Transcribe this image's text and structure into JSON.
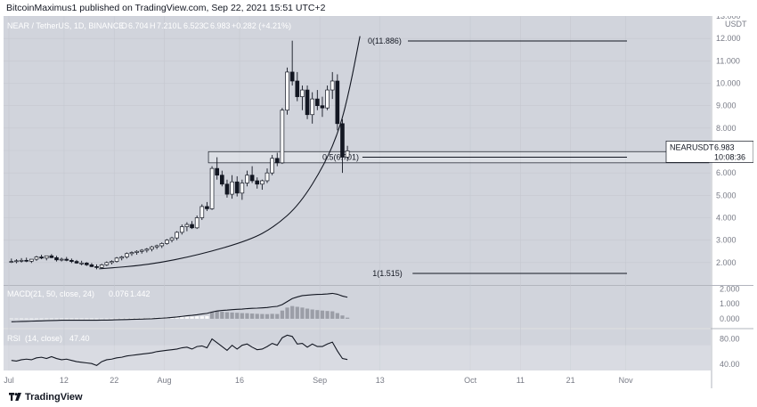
{
  "header": {
    "publisher_line": "BitcoinMaximus1 published on TradingView.com, Sep 22, 2021 15:51 UTC+2"
  },
  "footer": {
    "brand": "TradingView"
  },
  "colors": {
    "pane_bg": "#d1d4dc",
    "up": "#ffffff",
    "down": "#131722",
    "line": "#131722",
    "grid": "#c5c8d0"
  },
  "chart_data": [
    {
      "type": "candlestick",
      "legend": {
        "symbol": "NEAR / TetherUS, 1D, BINANCE",
        "open": "6.704",
        "high": "7.210",
        "low": "6.523",
        "close": "6.983",
        "change": "+0.282 (+4.21%)"
      },
      "yaxis": {
        "unit": "USDT",
        "ticks": [
          "2.000",
          "3.000",
          "4.000",
          "5.000",
          "6.000",
          "7.000",
          "8.000",
          "9.000",
          "10.000",
          "11.000",
          "12.000",
          "13.000"
        ],
        "range": [
          1.0,
          13.0
        ]
      },
      "xaxis": {
        "ticks": [
          "Jul",
          "12",
          "22",
          "Aug",
          "16",
          "Sep",
          "13",
          "Oct",
          "11",
          "21",
          "Nov"
        ]
      },
      "price_label": {
        "symbol": "NEARUSDT",
        "value": "6.983",
        "countdown": "10:08:36"
      },
      "fib_levels": [
        {
          "label": "0(11.886)",
          "value": 11.886
        },
        {
          "label": "0.5(6.701)",
          "value": 6.701
        },
        {
          "label": "1(1.515)",
          "value": 1.515
        }
      ],
      "support_zone": [
        6.45,
        6.95
      ],
      "candles": [
        [
          2.05,
          2.18,
          1.98,
          2.05
        ],
        [
          2.05,
          2.15,
          1.97,
          2.08
        ],
        [
          2.08,
          2.2,
          2.0,
          2.1
        ],
        [
          2.1,
          2.22,
          2.02,
          2.06
        ],
        [
          2.06,
          2.15,
          1.98,
          2.15
        ],
        [
          2.15,
          2.3,
          2.08,
          2.25
        ],
        [
          2.25,
          2.35,
          2.15,
          2.2
        ],
        [
          2.2,
          2.28,
          2.1,
          2.3
        ],
        [
          2.3,
          2.38,
          2.2,
          2.22
        ],
        [
          2.22,
          2.3,
          2.05,
          2.12
        ],
        [
          2.12,
          2.22,
          2.05,
          2.15
        ],
        [
          2.15,
          2.25,
          2.06,
          2.1
        ],
        [
          2.1,
          2.18,
          1.98,
          2.05
        ],
        [
          2.05,
          2.12,
          1.95,
          1.98
        ],
        [
          1.98,
          2.08,
          1.88,
          1.98
        ],
        [
          1.98,
          2.02,
          1.85,
          1.9
        ],
        [
          1.9,
          1.98,
          1.8,
          1.82
        ],
        [
          1.82,
          1.92,
          1.7,
          1.78
        ],
        [
          1.78,
          1.95,
          1.72,
          1.9
        ],
        [
          1.9,
          2.05,
          1.85,
          2.0
        ],
        [
          2.0,
          2.1,
          1.92,
          2.05
        ],
        [
          2.05,
          2.25,
          2.0,
          2.2
        ],
        [
          2.2,
          2.3,
          2.1,
          2.25
        ],
        [
          2.25,
          2.45,
          2.18,
          2.4
        ],
        [
          2.4,
          2.5,
          2.3,
          2.45
        ],
        [
          2.45,
          2.55,
          2.35,
          2.5
        ],
        [
          2.5,
          2.6,
          2.4,
          2.55
        ],
        [
          2.55,
          2.65,
          2.45,
          2.6
        ],
        [
          2.6,
          2.75,
          2.5,
          2.7
        ],
        [
          2.7,
          2.8,
          2.6,
          2.75
        ],
        [
          2.75,
          2.9,
          2.65,
          2.85
        ],
        [
          2.85,
          3.05,
          2.8,
          3.0
        ],
        [
          3.0,
          3.15,
          2.9,
          3.1
        ],
        [
          3.1,
          3.4,
          3.0,
          3.35
        ],
        [
          3.35,
          3.7,
          3.25,
          3.6
        ],
        [
          3.6,
          3.8,
          3.4,
          3.7
        ],
        [
          3.7,
          3.85,
          3.5,
          3.55
        ],
        [
          3.55,
          4.1,
          3.5,
          4.0
        ],
        [
          4.0,
          4.6,
          3.9,
          4.5
        ],
        [
          4.5,
          4.7,
          4.3,
          4.4
        ],
        [
          4.4,
          6.3,
          4.35,
          6.2
        ],
        [
          6.2,
          6.7,
          5.7,
          5.9
        ],
        [
          5.9,
          6.1,
          5.4,
          5.5
        ],
        [
          5.5,
          5.7,
          4.9,
          5.05
        ],
        [
          5.05,
          5.9,
          4.85,
          5.6
        ],
        [
          5.6,
          5.85,
          4.95,
          5.1
        ],
        [
          5.1,
          5.7,
          4.8,
          5.55
        ],
        [
          5.55,
          6.1,
          5.4,
          5.9
        ],
        [
          5.9,
          6.3,
          5.55,
          5.65
        ],
        [
          5.65,
          5.8,
          5.3,
          5.5
        ],
        [
          5.5,
          5.7,
          5.25,
          5.65
        ],
        [
          5.65,
          6.2,
          5.55,
          6.0
        ],
        [
          6.0,
          6.8,
          5.9,
          6.65
        ],
        [
          6.65,
          6.9,
          6.3,
          6.45
        ],
        [
          6.45,
          8.9,
          6.4,
          8.8
        ],
        [
          8.8,
          10.7,
          8.6,
          10.5
        ],
        [
          10.5,
          11.9,
          9.9,
          10.1
        ],
        [
          10.1,
          10.5,
          9.2,
          9.4
        ],
        [
          9.4,
          9.9,
          8.8,
          9.7
        ],
        [
          9.7,
          9.9,
          8.4,
          8.6
        ],
        [
          8.6,
          9.6,
          8.2,
          9.3
        ],
        [
          9.3,
          9.7,
          8.8,
          9.0
        ],
        [
          9.0,
          9.4,
          8.5,
          8.9
        ],
        [
          8.9,
          9.9,
          8.8,
          9.7
        ],
        [
          9.7,
          10.5,
          9.3,
          10.1
        ],
        [
          10.1,
          10.4,
          7.9,
          8.2
        ],
        [
          8.2,
          8.4,
          6.0,
          6.7
        ],
        [
          6.704,
          7.21,
          6.523,
          6.983
        ]
      ],
      "curve": [
        [
          18,
          1.72
        ],
        [
          28,
          1.9
        ],
        [
          38,
          2.35
        ],
        [
          48,
          3.0
        ],
        [
          53,
          3.6
        ],
        [
          58,
          4.6
        ],
        [
          63,
          6.4
        ],
        [
          66,
          8.0
        ],
        [
          68,
          9.8
        ],
        [
          70,
          12.1
        ]
      ]
    },
    {
      "type": "line",
      "legend": {
        "name": "MACD",
        "params": "(21, 50, close, 24)",
        "value1": "0.076",
        "value2": "1.442"
      },
      "yaxis": {
        "ticks": [
          "0.000",
          "1.000",
          "2.000"
        ],
        "range": [
          -0.6,
          2.2
        ]
      },
      "macd": [
        -0.2,
        -0.19,
        -0.18,
        -0.17,
        -0.16,
        -0.15,
        -0.14,
        -0.13,
        -0.12,
        -0.11,
        -0.1,
        -0.1,
        -0.1,
        -0.1,
        -0.1,
        -0.1,
        -0.1,
        -0.1,
        -0.09,
        -0.09,
        -0.08,
        -0.07,
        -0.06,
        -0.05,
        -0.04,
        -0.03,
        -0.02,
        -0.01,
        0.0,
        0.02,
        0.04,
        0.06,
        0.09,
        0.12,
        0.16,
        0.2,
        0.23,
        0.27,
        0.32,
        0.36,
        0.45,
        0.52,
        0.56,
        0.58,
        0.61,
        0.63,
        0.65,
        0.68,
        0.7,
        0.71,
        0.73,
        0.75,
        0.8,
        0.83,
        0.95,
        1.15,
        1.35,
        1.46,
        1.55,
        1.58,
        1.61,
        1.63,
        1.64,
        1.66,
        1.7,
        1.64,
        1.52,
        1.442
      ],
      "histogram": [
        0.02,
        0.02,
        0.02,
        0.02,
        0.02,
        0.02,
        0.02,
        0.02,
        0.02,
        0.02,
        0.02,
        0.02,
        0.02,
        0.02,
        0.02,
        0.02,
        0.02,
        0.02,
        0.02,
        0.02,
        0.03,
        0.03,
        0.04,
        0.04,
        0.05,
        0.05,
        0.06,
        0.06,
        0.07,
        0.08,
        0.09,
        0.1,
        0.11,
        0.12,
        0.13,
        0.14,
        0.15,
        0.16,
        0.17,
        0.18,
        0.45,
        0.5,
        0.47,
        0.44,
        0.42,
        0.4,
        0.38,
        0.37,
        0.35,
        0.33,
        0.32,
        0.31,
        0.33,
        0.32,
        0.55,
        0.75,
        0.85,
        0.8,
        0.75,
        0.68,
        0.62,
        0.58,
        0.55,
        0.52,
        0.5,
        0.38,
        0.22,
        0.076
      ]
    },
    {
      "type": "line",
      "legend": {
        "name": "RSI",
        "params": "(14, close)",
        "value": "47.40"
      },
      "yaxis": {
        "ticks": [
          "40.00",
          "80.00"
        ],
        "range": [
          30,
          95
        ]
      },
      "band": [
        30,
        70
      ],
      "rsi": [
        46,
        45,
        47,
        48,
        47,
        50,
        51,
        49,
        52,
        49,
        47,
        48,
        46,
        44,
        43,
        42,
        41,
        38,
        44,
        47,
        48,
        50,
        51,
        53,
        54,
        55,
        56,
        57,
        58,
        60,
        61,
        62,
        63,
        64,
        66,
        67,
        64,
        68,
        69,
        66,
        80,
        74,
        68,
        62,
        70,
        64,
        70,
        72,
        67,
        63,
        64,
        68,
        73,
        70,
        82,
        86,
        84,
        72,
        73,
        67,
        72,
        68,
        68,
        72,
        75,
        61,
        49,
        47.4
      ]
    }
  ]
}
